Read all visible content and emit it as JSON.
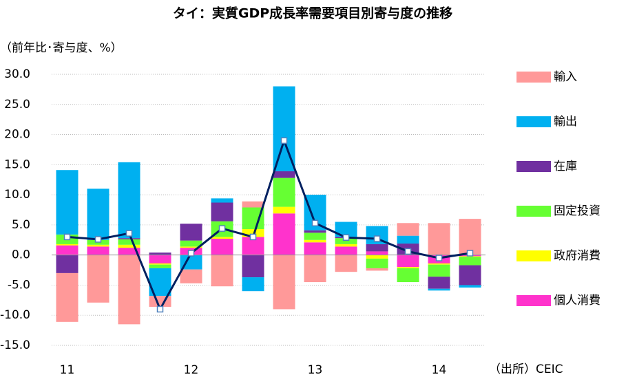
{
  "chart_data": {
    "type": "bar",
    "stacked": true,
    "title": "タイ：実質GDP成長率需要項目別寄与度の推移",
    "y_label": "（前年比･寄与度、%）",
    "source": "（出所）CEIC",
    "categories": [
      "11",
      null,
      null,
      null,
      "12",
      null,
      null,
      null,
      "13",
      null,
      null,
      null,
      "14",
      null
    ],
    "series": [
      {
        "name": "輸入",
        "color": "#ff9999",
        "values": [
          -8.1,
          -7.9,
          -11.5,
          -1.8,
          -2.3,
          -5.2,
          1.0,
          -9.0,
          -4.5,
          -2.8,
          -0.4,
          2.1,
          5.3,
          6.0
        ]
      },
      {
        "name": "輸出",
        "color": "#00b0f0",
        "values": [
          10.7,
          8.5,
          12.6,
          -4.6,
          -2.4,
          0.7,
          -2.3,
          14.1,
          5.9,
          2.5,
          3.0,
          1.3,
          -0.3,
          -0.4
        ]
      },
      {
        "name": "在庫",
        "color": "#7030a0",
        "values": [
          -3.0,
          0,
          0.2,
          0.4,
          2.8,
          3.1,
          -3.7,
          1.1,
          0.4,
          0.2,
          1.2,
          1.9,
          -2.0,
          -3.3
        ]
      },
      {
        "name": "固定投資",
        "color": "#66ff33",
        "values": [
          1.6,
          0.8,
          0.9,
          -0.6,
          1.0,
          2.6,
          3.6,
          4.8,
          1.2,
          1.0,
          -1.6,
          -2.3,
          -2.0,
          -1.4
        ]
      },
      {
        "name": "政府消費",
        "color": "#ffff00",
        "values": [
          0.2,
          0.3,
          0.5,
          -0.2,
          0.2,
          0.3,
          1.3,
          1.1,
          0.4,
          0.4,
          -0.6,
          -0.2,
          -0.2,
          -0.1
        ]
      },
      {
        "name": "個人消費",
        "color": "#ff33cc",
        "values": [
          1.6,
          1.4,
          1.2,
          -1.4,
          1.2,
          2.7,
          3.0,
          6.9,
          2.1,
          1.4,
          0.6,
          -2.0,
          -1.4,
          -0.2
        ]
      }
    ],
    "line": {
      "color": "#002060",
      "values": [
        3.0,
        2.6,
        3.6,
        -9.0,
        0.3,
        4.4,
        3.0,
        19.0,
        5.3,
        2.9,
        2.7,
        0.6,
        -0.5,
        0.3
      ]
    },
    "ylim": [
      -15,
      30
    ],
    "yticks": [
      {
        "value": -15,
        "label": "-15.0"
      },
      {
        "value": -10,
        "label": "-10.0"
      },
      {
        "value": -5,
        "label": "-5.0"
      },
      {
        "value": 0,
        "label": "0.0"
      },
      {
        "value": 5,
        "label": "5.0"
      },
      {
        "value": 10,
        "label": "10.0"
      },
      {
        "value": 15,
        "label": "15.0"
      },
      {
        "value": 20,
        "label": "20.0"
      },
      {
        "value": 25,
        "label": "25.0"
      },
      {
        "value": 30,
        "label": "30.0"
      }
    ],
    "grid": true,
    "legend": "right"
  }
}
